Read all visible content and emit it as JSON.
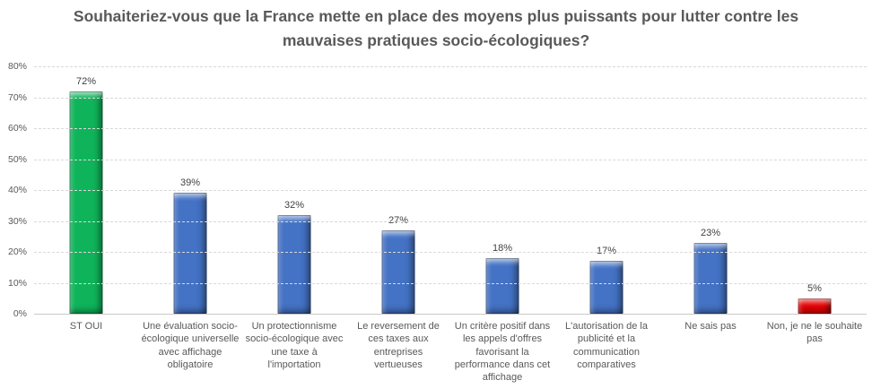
{
  "chart_data": {
    "type": "bar",
    "title": "Souhaiteriez-vous que la France mette en place des moyens plus puissants pour lutter contre les mauvaises pratiques socio-écologiques?",
    "categories": [
      "ST OUI",
      "Une évaluation socio-écologique universelle avec affichage obligatoire",
      "Un protectionnisme socio-écologique avec une taxe à l'importation",
      "Le reversement de ces taxes aux entreprises vertueuses",
      "Un critère positif dans les appels d'offres favorisant la performance dans cet affichage",
      "L'autorisation de la publicité et la communication comparatives",
      "Ne sais pas",
      "Non, je ne le souhaite pas"
    ],
    "values": [
      72,
      39,
      32,
      27,
      18,
      17,
      23,
      5
    ],
    "value_labels": [
      "72%",
      "39%",
      "32%",
      "27%",
      "18%",
      "17%",
      "23%",
      "5%"
    ],
    "bar_colors": [
      "#0fb45a",
      "#4472c4",
      "#4472c4",
      "#4472c4",
      "#4472c4",
      "#4472c4",
      "#4472c4",
      "#e60000"
    ],
    "ylim": [
      0,
      80
    ],
    "ytick_step": 10,
    "ytick_labels": [
      "0%",
      "10%",
      "20%",
      "30%",
      "40%",
      "50%",
      "60%",
      "70%",
      "80%"
    ],
    "grid": "horizontal-dashed",
    "legend": "none",
    "colors": {
      "grid_line": "#d9d9d9",
      "axis_line": "#c9c9c9",
      "title_text": "#595959",
      "axis_text": "#595959",
      "value_label_text": "#404040",
      "background": "#ffffff"
    }
  }
}
